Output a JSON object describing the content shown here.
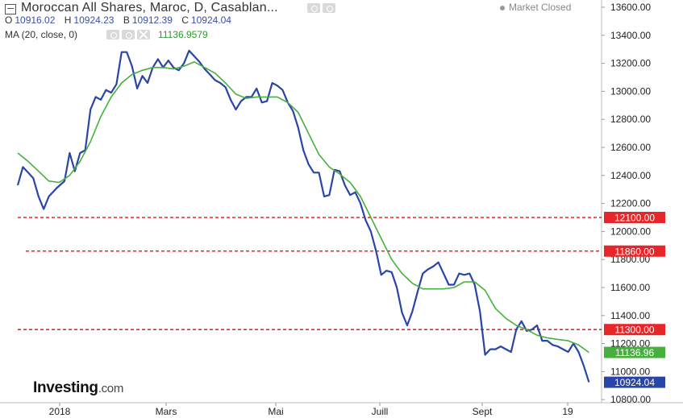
{
  "header": {
    "title": "Moroccan All Shares, Maroc, D, Casablan...",
    "ohlc": [
      {
        "key": "O",
        "value": "10916.02"
      },
      {
        "key": "H",
        "value": "10924.23"
      },
      {
        "key": "B",
        "value": "10912.39"
      },
      {
        "key": "C",
        "value": "10924.04"
      }
    ],
    "ma_label": "MA (20, close, 0)",
    "ma_value": "11136.9579",
    "market_status": "Market Closed"
  },
  "branding": {
    "logo": "Investing",
    "logo_suffix": ".com"
  },
  "colors": {
    "price": "#2a45a8",
    "ma": "#46b03c",
    "level": "#e8262a",
    "price_tag": "#2a45a8",
    "ma_tag": "#46b03c"
  },
  "icons": [
    "chart-toggle-icon",
    "eye-icon",
    "settings-icon",
    "close-icon",
    "market-status-dot-icon"
  ],
  "chart_data": {
    "type": "line",
    "x_ticks": [
      "2018",
      "Mars",
      "Mai",
      "Juill",
      "Sept",
      "19"
    ],
    "y_ticks": [
      "13600.00",
      "13400.00",
      "13200.00",
      "13000.00",
      "12800.00",
      "12600.00",
      "12400.00",
      "12200.00",
      "12000.00",
      "11800.00",
      "11600.00",
      "11400.00",
      "11200.00",
      "11000.00",
      "10800.00"
    ],
    "ylim": [
      10760,
      13680
    ],
    "horizontal_levels": [
      {
        "value": 12100,
        "label": "12100.00"
      },
      {
        "value": 11860,
        "label": "11860.00"
      },
      {
        "value": 11300,
        "label": "11300.00"
      }
    ],
    "last_price": {
      "value": 10924.04,
      "label": "10924.04"
    },
    "last_ma": {
      "value": 11136.96,
      "label": "11136.96"
    },
    "series": [
      {
        "role": "price",
        "points": [
          [
            0,
            12330
          ],
          [
            2,
            12460
          ],
          [
            4,
            12420
          ],
          [
            6,
            12380
          ],
          [
            8,
            12250
          ],
          [
            10,
            12160
          ],
          [
            12,
            12250
          ],
          [
            15,
            12310
          ],
          [
            18,
            12360
          ],
          [
            20,
            12560
          ],
          [
            22,
            12430
          ],
          [
            24,
            12560
          ],
          [
            26,
            12580
          ],
          [
            28,
            12870
          ],
          [
            30,
            12960
          ],
          [
            32,
            12940
          ],
          [
            34,
            13010
          ],
          [
            36,
            12990
          ],
          [
            38,
            13050
          ],
          [
            40,
            13280
          ],
          [
            42,
            13280
          ],
          [
            44,
            13180
          ],
          [
            46,
            13020
          ],
          [
            48,
            13110
          ],
          [
            50,
            13060
          ],
          [
            52,
            13170
          ],
          [
            54,
            13230
          ],
          [
            56,
            13170
          ],
          [
            58,
            13220
          ],
          [
            60,
            13170
          ],
          [
            62,
            13150
          ],
          [
            64,
            13200
          ],
          [
            66,
            13290
          ],
          [
            68,
            13250
          ],
          [
            70,
            13210
          ],
          [
            72,
            13160
          ],
          [
            74,
            13120
          ],
          [
            76,
            13080
          ],
          [
            78,
            13060
          ],
          [
            80,
            13030
          ],
          [
            82,
            12940
          ],
          [
            84,
            12870
          ],
          [
            86,
            12930
          ],
          [
            88,
            12960
          ],
          [
            90,
            12960
          ],
          [
            92,
            13020
          ],
          [
            94,
            12920
          ],
          [
            96,
            12930
          ],
          [
            98,
            13060
          ],
          [
            100,
            13040
          ],
          [
            102,
            13010
          ],
          [
            104,
            12920
          ],
          [
            106,
            12860
          ],
          [
            108,
            12740
          ],
          [
            110,
            12580
          ],
          [
            112,
            12480
          ],
          [
            114,
            12420
          ],
          [
            116,
            12420
          ],
          [
            118,
            12250
          ],
          [
            120,
            12260
          ],
          [
            122,
            12440
          ],
          [
            124,
            12430
          ],
          [
            126,
            12330
          ],
          [
            128,
            12260
          ],
          [
            130,
            12280
          ],
          [
            132,
            12200
          ],
          [
            134,
            12080
          ],
          [
            136,
            12000
          ],
          [
            138,
            11860
          ],
          [
            140,
            11690
          ],
          [
            142,
            11720
          ],
          [
            144,
            11710
          ],
          [
            146,
            11600
          ],
          [
            148,
            11420
          ],
          [
            150,
            11330
          ],
          [
            152,
            11430
          ],
          [
            154,
            11570
          ],
          [
            156,
            11700
          ],
          [
            158,
            11730
          ],
          [
            160,
            11750
          ],
          [
            162,
            11780
          ],
          [
            164,
            11700
          ],
          [
            166,
            11620
          ],
          [
            168,
            11620
          ],
          [
            170,
            11700
          ],
          [
            172,
            11690
          ],
          [
            174,
            11700
          ],
          [
            176,
            11620
          ],
          [
            178,
            11430
          ],
          [
            180,
            11120
          ],
          [
            182,
            11160
          ],
          [
            184,
            11160
          ],
          [
            186,
            11180
          ],
          [
            188,
            11160
          ],
          [
            190,
            11140
          ],
          [
            192,
            11300
          ],
          [
            194,
            11360
          ],
          [
            196,
            11290
          ],
          [
            198,
            11300
          ],
          [
            200,
            11330
          ],
          [
            202,
            11220
          ],
          [
            204,
            11220
          ],
          [
            206,
            11190
          ],
          [
            208,
            11180
          ],
          [
            210,
            11160
          ],
          [
            212,
            11140
          ],
          [
            214,
            11200
          ],
          [
            216,
            11140
          ],
          [
            218,
            11040
          ],
          [
            220,
            10924
          ]
        ]
      },
      {
        "role": "ma",
        "points": [
          [
            0,
            12560
          ],
          [
            4,
            12500
          ],
          [
            8,
            12430
          ],
          [
            12,
            12360
          ],
          [
            16,
            12350
          ],
          [
            20,
            12400
          ],
          [
            24,
            12500
          ],
          [
            28,
            12640
          ],
          [
            32,
            12820
          ],
          [
            36,
            12960
          ],
          [
            40,
            13060
          ],
          [
            44,
            13120
          ],
          [
            48,
            13150
          ],
          [
            52,
            13170
          ],
          [
            56,
            13170
          ],
          [
            60,
            13160
          ],
          [
            64,
            13180
          ],
          [
            68,
            13210
          ],
          [
            72,
            13170
          ],
          [
            76,
            13130
          ],
          [
            80,
            13060
          ],
          [
            84,
            12980
          ],
          [
            88,
            12950
          ],
          [
            92,
            12960
          ],
          [
            96,
            12960
          ],
          [
            100,
            12960
          ],
          [
            104,
            12920
          ],
          [
            108,
            12850
          ],
          [
            112,
            12700
          ],
          [
            116,
            12550
          ],
          [
            120,
            12460
          ],
          [
            124,
            12410
          ],
          [
            128,
            12350
          ],
          [
            132,
            12250
          ],
          [
            136,
            12100
          ],
          [
            140,
            11950
          ],
          [
            144,
            11800
          ],
          [
            148,
            11700
          ],
          [
            152,
            11630
          ],
          [
            156,
            11590
          ],
          [
            160,
            11590
          ],
          [
            164,
            11590
          ],
          [
            168,
            11600
          ],
          [
            172,
            11640
          ],
          [
            176,
            11640
          ],
          [
            180,
            11580
          ],
          [
            184,
            11450
          ],
          [
            188,
            11380
          ],
          [
            192,
            11330
          ],
          [
            196,
            11300
          ],
          [
            200,
            11260
          ],
          [
            204,
            11240
          ],
          [
            208,
            11230
          ],
          [
            212,
            11220
          ],
          [
            216,
            11190
          ],
          [
            220,
            11137
          ]
        ]
      }
    ]
  }
}
